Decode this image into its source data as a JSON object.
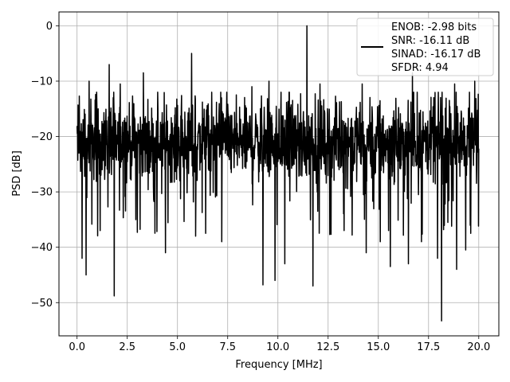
{
  "chart_data": {
    "type": "line",
    "xlabel": "Frequency [MHz]",
    "ylabel": "PSD [dB]",
    "xlim": [
      -0.9,
      21.0
    ],
    "ylim": [
      -56,
      2.5
    ],
    "grid": true,
    "x_ticks": [
      0.0,
      2.5,
      5.0,
      7.5,
      10.0,
      12.5,
      15.0,
      17.5,
      20.0
    ],
    "x_tick_labels": [
      "0.0",
      "2.5",
      "5.0",
      "7.5",
      "10.0",
      "12.5",
      "15.0",
      "17.5",
      "20.0"
    ],
    "y_ticks": [
      0,
      -10,
      -20,
      -30,
      -40,
      -50
    ],
    "y_tick_labels": [
      "0",
      "−10",
      "−20",
      "−30",
      "−40",
      "−50"
    ],
    "legend": {
      "placement": "top-right",
      "lines": [
        "ENOB: -2.98 bits",
        "SNR: -16.11 dB",
        "SINAD: -16.17 dB",
        "SFDR: 4.94"
      ]
    },
    "series": [
      {
        "color": "#000000",
        "noise_floor_db": -21,
        "noise_band_db": [
          -30,
          -14
        ],
        "x_range": [
          0,
          20
        ],
        "peaks": [
          [
            11.45,
            0
          ],
          [
            5.7,
            -5
          ],
          [
            1.6,
            -7
          ],
          [
            3.3,
            -8.5
          ],
          [
            16.7,
            -8.5
          ],
          [
            19.8,
            -10
          ],
          [
            0.6,
            -10
          ],
          [
            2.15,
            -10.5
          ],
          [
            9.55,
            -10
          ],
          [
            12.1,
            -10.5
          ],
          [
            14.2,
            -10.5
          ],
          [
            18.8,
            -10.5
          ],
          [
            8.7,
            -11
          ]
        ],
        "troughs": [
          [
            1.85,
            -48.8
          ],
          [
            0.25,
            -42
          ],
          [
            0.45,
            -45
          ],
          [
            1.15,
            -37
          ],
          [
            4.4,
            -41
          ],
          [
            5.9,
            -38
          ],
          [
            6.4,
            -37.5
          ],
          [
            7.2,
            -39
          ],
          [
            9.25,
            -46.8
          ],
          [
            9.85,
            -46
          ],
          [
            10.35,
            -43
          ],
          [
            11.75,
            -47
          ],
          [
            13.3,
            -37
          ],
          [
            14.4,
            -41
          ],
          [
            15.1,
            -39
          ],
          [
            15.6,
            -43.5
          ],
          [
            16.5,
            -43
          ],
          [
            17.15,
            -39
          ],
          [
            17.95,
            -42
          ],
          [
            18.15,
            -53.3
          ],
          [
            18.9,
            -44
          ],
          [
            19.35,
            -40.5
          ],
          [
            19.6,
            -37.5
          ]
        ]
      }
    ]
  }
}
